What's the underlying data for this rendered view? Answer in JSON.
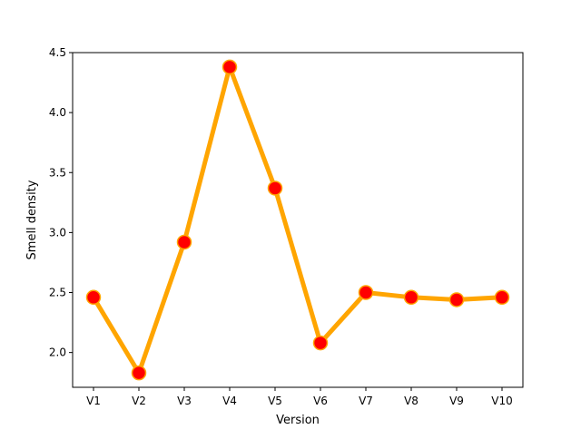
{
  "chart_data": {
    "type": "line",
    "title": "",
    "xlabel": "Version",
    "ylabel": "Smell density",
    "categories": [
      "V1",
      "V2",
      "V3",
      "V4",
      "V5",
      "V6",
      "V7",
      "V8",
      "V9",
      "V10"
    ],
    "series": [
      {
        "values": [
          2.46,
          1.83,
          2.92,
          4.38,
          3.37,
          2.08,
          2.5,
          2.46,
          2.44,
          2.46
        ]
      }
    ],
    "ylim": [
      1.71,
      4.5
    ],
    "yticks": [
      "2.0",
      "2.5",
      "3.0",
      "3.5",
      "4.0",
      "4.5"
    ],
    "grid": false,
    "legend": "none",
    "colors": {
      "line": "#FFA500",
      "marker_fill": "#FF0000",
      "marker_edge": "#FFA500",
      "axes": "#000000",
      "background": "#FFFFFF"
    }
  }
}
